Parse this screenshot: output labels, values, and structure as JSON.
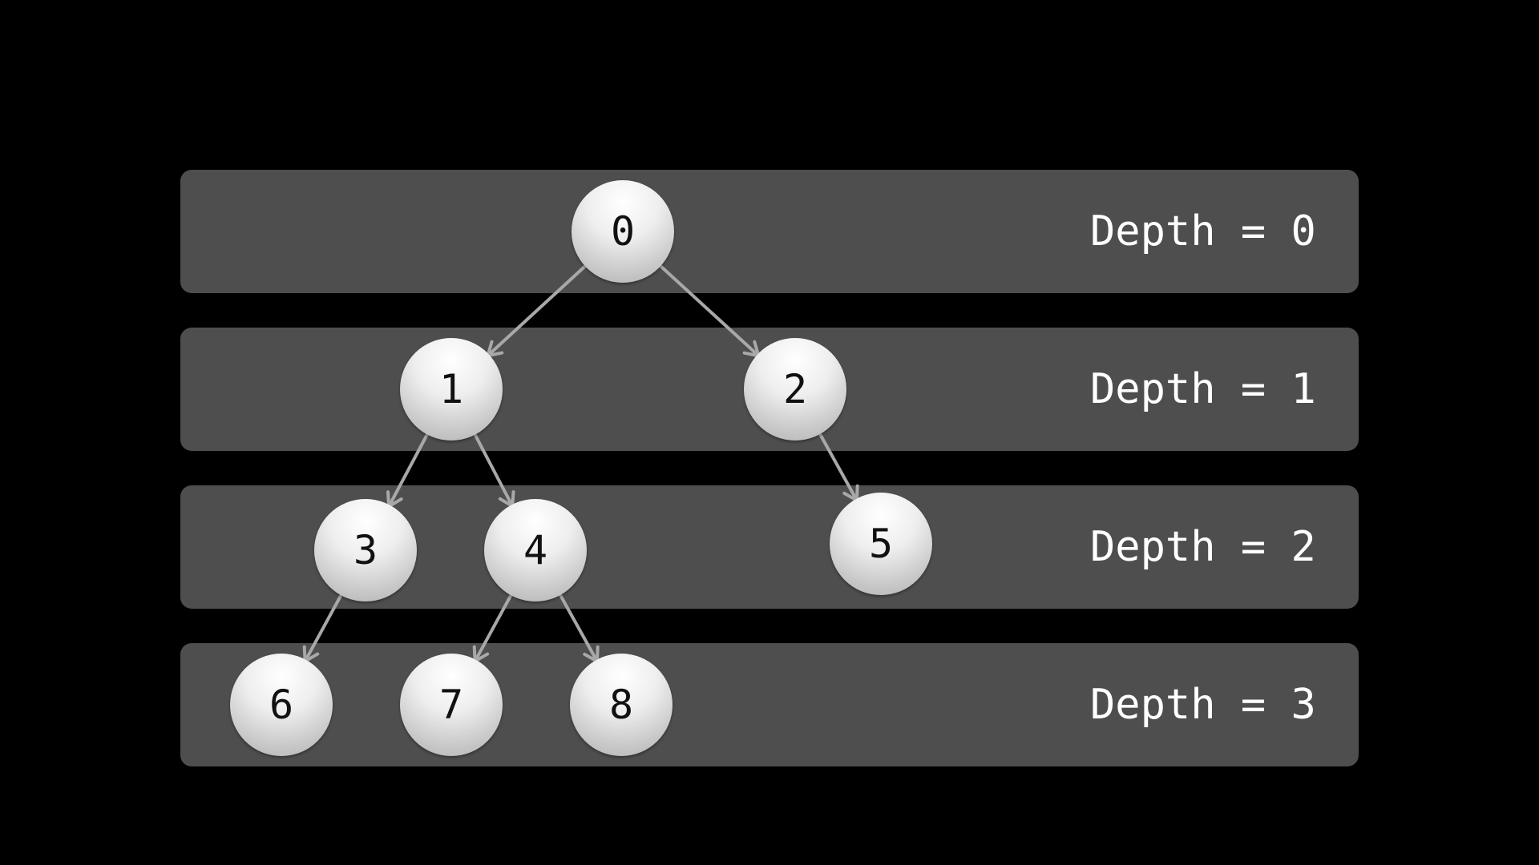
{
  "depth_labels": [
    "Depth = 0",
    "Depth = 1",
    "Depth = 2",
    "Depth = 3"
  ],
  "nodes": [
    "0",
    "1",
    "2",
    "3",
    "4",
    "5",
    "6",
    "7",
    "8"
  ],
  "edges": [
    {
      "from": "0",
      "to": "1"
    },
    {
      "from": "0",
      "to": "2"
    },
    {
      "from": "1",
      "to": "3"
    },
    {
      "from": "1",
      "to": "4"
    },
    {
      "from": "2",
      "to": "5"
    },
    {
      "from": "3",
      "to": "6"
    },
    {
      "from": "4",
      "to": "7"
    },
    {
      "from": "4",
      "to": "8"
    }
  ],
  "colors": {
    "background": "#000000",
    "band": "#4e4e4e",
    "edge": "#a8a8a8",
    "label": "#ffffff",
    "node_text": "#111111"
  }
}
